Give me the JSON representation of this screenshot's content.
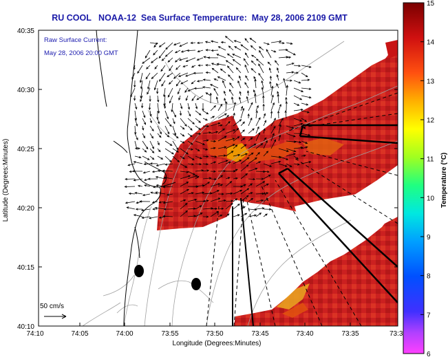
{
  "title": "RU COOL   NOAA-12  Sea Surface Temperature:  May 28, 2006 2109 GMT",
  "annotation": {
    "line1": "Raw Surface Current:",
    "line2": "May 28, 2006 20:00 GMT",
    "scale_label": "50 cm/s"
  },
  "axes": {
    "xlabel": "Longitude (Degrees:Minutes)",
    "ylabel": "Latitude (Degrees:Minutes)",
    "xticks": [
      "74:10",
      "74:05",
      "74:00",
      "73:55",
      "73:50",
      "73:45",
      "73:40",
      "73:35",
      "73:3"
    ],
    "yticks": [
      "40:35",
      "40:30",
      "40:25",
      "40:20",
      "40:15",
      "40:10"
    ]
  },
  "colorbar": {
    "label": "Temperature (°C)",
    "ticks": [
      "15",
      "14",
      "13",
      "12",
      "11",
      "10",
      "9",
      "8",
      "7",
      "6"
    ],
    "min": 6,
    "max": 15
  },
  "colors": {
    "title": "#1a1aa8",
    "annotation": "#2020b0",
    "sst_warm": "#c01010",
    "coastline": "#000000",
    "bathymetry": "#a0a0a0"
  }
}
